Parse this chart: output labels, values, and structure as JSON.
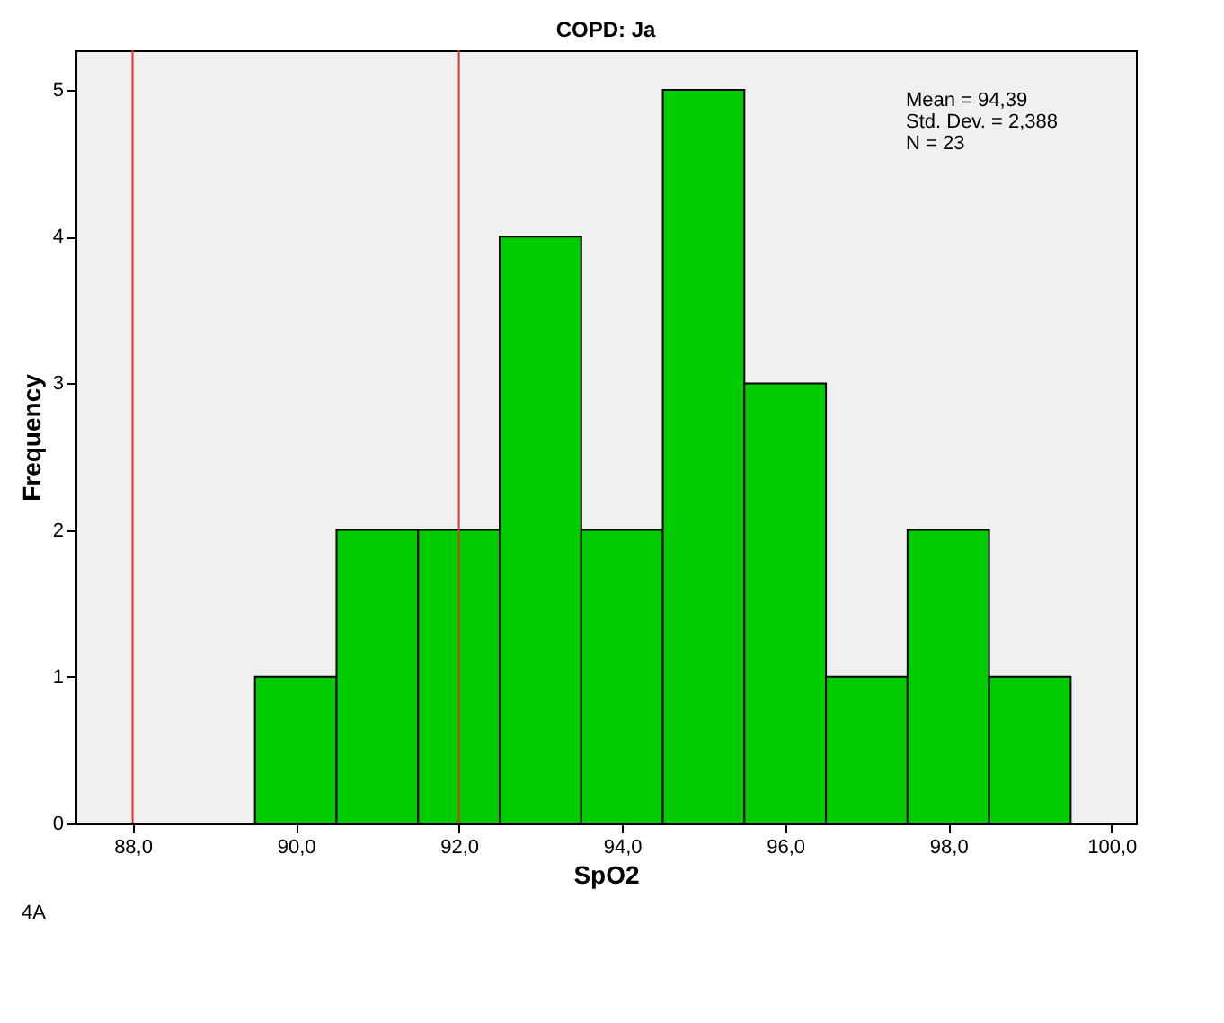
{
  "chart_data": {
    "type": "histogram",
    "title": "COPD: Ja",
    "xlabel": "SpO2",
    "ylabel": "Frequency",
    "bins": [
      89.5,
      90.5,
      91.5,
      92.5,
      93.5,
      94.5,
      95.5,
      96.5,
      97.5,
      98.5,
      99.5
    ],
    "values": [
      1,
      2,
      2,
      4,
      2,
      5,
      3,
      1,
      2,
      1
    ],
    "color": "#00cc00",
    "xlim": [
      87.3,
      100.3
    ],
    "xticks": [
      {
        "value": 88,
        "label": "88,0"
      },
      {
        "value": 90,
        "label": "90,0"
      },
      {
        "value": 92,
        "label": "92,0"
      },
      {
        "value": 94,
        "label": "94,0"
      },
      {
        "value": 96,
        "label": "96,0"
      },
      {
        "value": 98,
        "label": "98,0"
      },
      {
        "value": 100,
        "label": "100,0"
      }
    ],
    "ylim": [
      0,
      5.27
    ],
    "yticks": [
      0,
      1,
      2,
      3,
      4,
      5
    ],
    "grid": false,
    "ref_lines": [
      {
        "axis": "x",
        "value": 88,
        "color": "#e53030"
      },
      {
        "axis": "x",
        "value": 92,
        "color": "#e53030"
      }
    ],
    "annotations": [
      "Mean = 94,39",
      "Std. Dev. = 2,388",
      "N = 23",
      "4A"
    ]
  }
}
